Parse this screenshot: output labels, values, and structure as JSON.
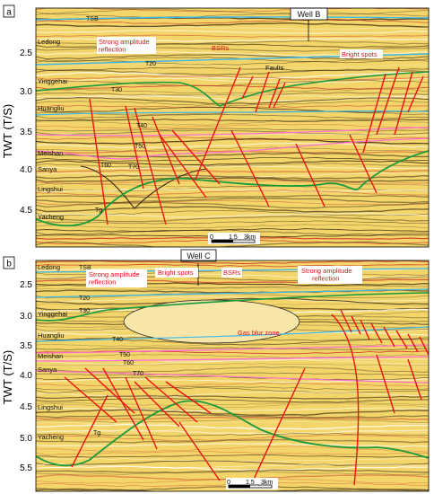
{
  "y_axis_label": "TWT (T/S)",
  "panels": [
    {
      "id": "a",
      "ticks": [
        "2.5",
        "3.0",
        "3.5",
        "4.0",
        "4.5"
      ],
      "well": "Well B",
      "formations": [
        "Ledong",
        "Yinggehai",
        "Huangliu",
        "Meishan",
        "Sanya",
        "Lingshui",
        "Yacheng"
      ],
      "horizons": [
        "TSB",
        "T20",
        "T30",
        "T40",
        "T50",
        "T60",
        "T70",
        "Tg"
      ],
      "annotations": {
        "strong_amplitude": "Strong amplitude\nreflection",
        "bsrs": "BSRs",
        "bright_spots": "Bright spots",
        "faults": "Faults"
      },
      "scale": {
        "zero": "0",
        "mid": "1.5",
        "end": "3km"
      }
    },
    {
      "id": "b",
      "ticks": [
        "2.5",
        "3.0",
        "3.5",
        "4.0",
        "4.5",
        "5.0",
        "5.5"
      ],
      "well": "Well C",
      "formations": [
        "Ledong",
        "Yinggehai",
        "Huangliu",
        "Meishan",
        "Sanya",
        "Lingshui",
        "Yacheng"
      ],
      "horizons": [
        "TSB",
        "T20",
        "T30",
        "T40",
        "T50",
        "T60",
        "T70",
        "Tg"
      ],
      "annotations": {
        "strong_amplitude_left": "Strong amplitude\nreflection",
        "bright_spots": "Bright spots",
        "bsrs": "BSRs",
        "strong_amplitude_right": "Strong amplitude\nreflection",
        "gas_blur_zone": "Gas blur zone"
      },
      "scale": {
        "zero": "0",
        "mid": "1.5",
        "end": "3km"
      }
    }
  ],
  "colors": {
    "background": "#f3d56a",
    "stripe_dark": "#3a2a12",
    "stripe_red": "#c8281e",
    "horizon_green": "#1a9a3a",
    "horizon_cyan": "#3fb8e8",
    "horizon_pink": "#ff6fd0",
    "fault_red": "#ee1111",
    "annotation_red": "#e0101a"
  }
}
